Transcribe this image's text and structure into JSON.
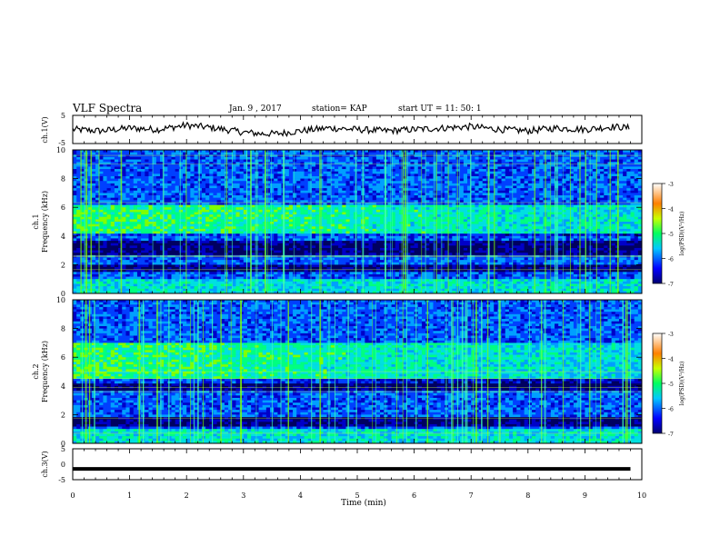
{
  "header": {
    "title": "VLF Spectra",
    "date": "Jan. 9 , 2017",
    "station": "station= KAP",
    "start": "start UT = 11: 50: 1"
  },
  "chart_data": [
    {
      "type": "line",
      "ylabel": "ch.1(V)",
      "ylim": [
        -5,
        5
      ],
      "yticks": [
        "5",
        "-5"
      ],
      "xlim": [
        0,
        10
      ],
      "x": [
        0,
        0.5,
        1,
        1.5,
        2,
        2.5,
        3,
        3.3,
        3.6,
        4,
        4.5,
        5,
        5.5,
        6,
        6.5,
        7,
        7.5,
        8,
        8.5,
        9,
        9.5,
        9.8
      ],
      "y": [
        0,
        -0.5,
        0.5,
        0,
        1.5,
        0.5,
        -1,
        -1.5,
        -1.5,
        -0.5,
        0.5,
        0,
        -0.5,
        0,
        0.5,
        1,
        0,
        -0.5,
        0.5,
        0,
        1,
        0.5
      ]
    },
    {
      "type": "heatmap",
      "ylabel": "ch.1",
      "ylabel2": "Frequency (kHz)",
      "ylim": [
        0,
        10
      ],
      "yticks": [
        "0",
        "2",
        "4",
        "6",
        "8",
        "10"
      ],
      "xlim": [
        0,
        10
      ],
      "colorbar": {
        "label": "log(PSD)(V²/Hz)",
        "range": [
          -7,
          -3
        ],
        "ticks": [
          "-3",
          "-4",
          "-5",
          "-6",
          "-7"
        ]
      },
      "bands_kHz": [
        [
          4.2,
          6.2,
          "high"
        ],
        [
          2.6,
          3.6,
          "low"
        ],
        [
          1.5,
          2.0,
          "low"
        ],
        [
          0,
          1.0,
          "mid"
        ]
      ]
    },
    {
      "type": "heatmap",
      "ylabel": "ch.2",
      "ylabel2": "Frequency (kHz)",
      "ylim": [
        0,
        10
      ],
      "yticks": [
        "0",
        "2",
        "4",
        "6",
        "8",
        "10"
      ],
      "xlim": [
        0,
        10
      ],
      "colorbar": {
        "label": "log(PSD)(V²/Hz)",
        "range": [
          -7,
          -3
        ],
        "ticks": [
          "-3",
          "-4",
          "-5",
          "-6",
          "-7"
        ]
      },
      "bands_kHz": [
        [
          4.5,
          7.0,
          "high"
        ],
        [
          3.7,
          4.2,
          "low"
        ],
        [
          1.2,
          1.8,
          "low"
        ],
        [
          0,
          1.0,
          "mid"
        ]
      ]
    },
    {
      "type": "line",
      "ylabel": "ch.3(V)",
      "xlabel": "Time (min)",
      "ylim": [
        -5,
        5
      ],
      "yticks": [
        "5",
        "0",
        "-5"
      ],
      "xlim": [
        0,
        10
      ],
      "xticks": [
        "0",
        "1",
        "2",
        "3",
        "4",
        "5",
        "6",
        "7",
        "8",
        "9",
        "10"
      ],
      "x": [
        0,
        9.8
      ],
      "y": [
        -1.5,
        -1.5
      ]
    }
  ]
}
